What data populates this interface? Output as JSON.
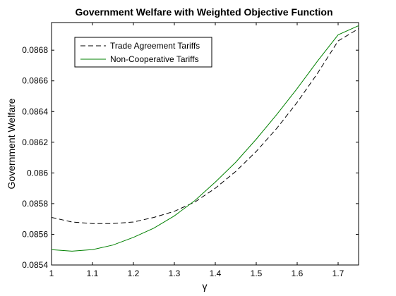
{
  "chart_data": {
    "type": "line",
    "title": "Government Welfare with Weighted Objective Function",
    "xlabel": "γ",
    "ylabel": "Government Welfare",
    "xlim": [
      1,
      1.75
    ],
    "ylim": [
      0.0854,
      0.08698
    ],
    "xticks": [
      "1",
      "1.1",
      "1.2",
      "1.3",
      "1.4",
      "1.5",
      "1.6",
      "1.7"
    ],
    "yticks": [
      "0.0854",
      "0.0856",
      "0.0858",
      "0.086",
      "0.0862",
      "0.0864",
      "0.0866",
      "0.0868"
    ],
    "grid": false,
    "legend_position": "top-left",
    "series": [
      {
        "name": "Trade Agreement Tariffs",
        "color": "#000000",
        "style": "dashed",
        "x": [
          1.0,
          1.05,
          1.1,
          1.15,
          1.2,
          1.25,
          1.3,
          1.35,
          1.4,
          1.45,
          1.5,
          1.55,
          1.6,
          1.65,
          1.7,
          1.75
        ],
        "y": [
          0.08571,
          0.08568,
          0.08567,
          0.08567,
          0.08568,
          0.08571,
          0.08575,
          0.08581,
          0.0859,
          0.08601,
          0.08614,
          0.08629,
          0.08646,
          0.08665,
          0.08686,
          0.08694
        ]
      },
      {
        "name": "Non-Cooperative Tariffs",
        "color": "#008000",
        "style": "solid",
        "x": [
          1.0,
          1.05,
          1.1,
          1.15,
          1.2,
          1.25,
          1.3,
          1.35,
          1.4,
          1.45,
          1.5,
          1.55,
          1.6,
          1.65,
          1.7,
          1.75
        ],
        "y": [
          0.0855,
          0.08549,
          0.0855,
          0.08553,
          0.08558,
          0.08564,
          0.08572,
          0.08582,
          0.08594,
          0.08607,
          0.08622,
          0.08638,
          0.08655,
          0.08673,
          0.0869,
          0.08696
        ]
      }
    ]
  }
}
